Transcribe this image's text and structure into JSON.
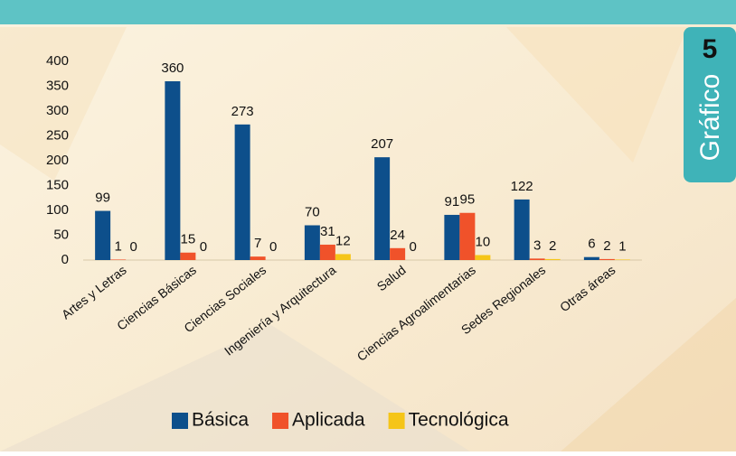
{
  "badge": {
    "number": "5",
    "label": "Gráfico"
  },
  "chart_data": {
    "type": "bar",
    "categories": [
      "Artes y Letras",
      "Ciencias Básicas",
      "Ciencias Sociales",
      "Ingeniería y Arquitectura",
      "Salud",
      "Ciencias Agroalimentarias",
      "Sedes Regionales",
      "Otras áreas"
    ],
    "series": [
      {
        "name": "Básica",
        "color": "#0d4f8b",
        "values": [
          99,
          360,
          273,
          70,
          207,
          91,
          122,
          6
        ]
      },
      {
        "name": "Aplicada",
        "color": "#f0522a",
        "values": [
          1,
          15,
          7,
          31,
          24,
          95,
          3,
          2
        ]
      },
      {
        "name": "Tecnológica",
        "color": "#f5c518",
        "values": [
          0,
          0,
          0,
          12,
          0,
          10,
          2,
          1
        ]
      }
    ],
    "ylim": [
      0,
      400
    ],
    "yticks": [
      0,
      50,
      100,
      150,
      200,
      250,
      300,
      350,
      400
    ],
    "grid": false,
    "legend": "bottom"
  }
}
